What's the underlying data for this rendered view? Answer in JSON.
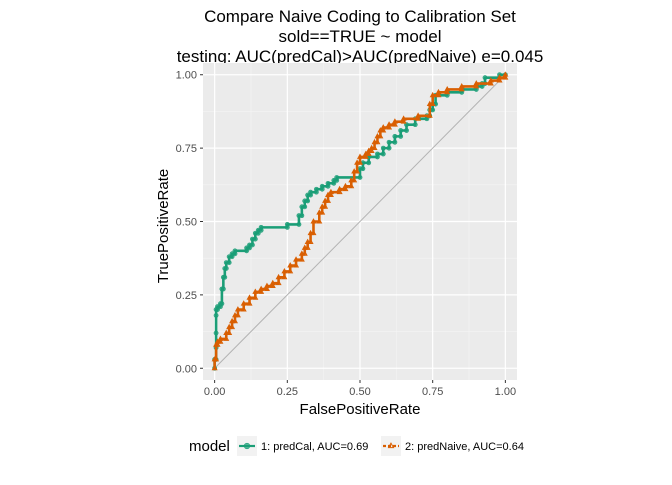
{
  "chart_data": {
    "type": "line",
    "title_lines": [
      "Compare Naive Coding to Calibration Set",
      "sold==TRUE ~ model",
      "testing: AUC(predCal)>AUC(predNaive) e=0.045"
    ],
    "xlabel": "FalsePositiveRate",
    "ylabel": "TruePositiveRate",
    "xlim": [
      -0.04,
      1.04
    ],
    "ylim": [
      -0.04,
      1.04
    ],
    "xticks": [
      "0.00",
      "0.25",
      "0.50",
      "0.75",
      "1.00"
    ],
    "yticks": [
      "0.00",
      "0.25",
      "0.50",
      "0.75",
      "1.00"
    ],
    "grid": true,
    "reference_line": [
      [
        0,
        0
      ],
      [
        1,
        1
      ]
    ],
    "legend": {
      "title": "model",
      "position": "bottom"
    },
    "series": [
      {
        "name": "1: predCal, AUC=0.69",
        "color": "#1b9e77",
        "marker": "circle",
        "points": [
          [
            0,
            0
          ],
          [
            0,
            0.03
          ],
          [
            0.005,
            0.03
          ],
          [
            0.005,
            0.07
          ],
          [
            0.005,
            0.12
          ],
          [
            0.005,
            0.18
          ],
          [
            0.005,
            0.2
          ],
          [
            0.01,
            0.2
          ],
          [
            0.01,
            0.21
          ],
          [
            0.02,
            0.21
          ],
          [
            0.02,
            0.22
          ],
          [
            0.025,
            0.22
          ],
          [
            0.025,
            0.27
          ],
          [
            0.03,
            0.27
          ],
          [
            0.03,
            0.31
          ],
          [
            0.035,
            0.31
          ],
          [
            0.035,
            0.34
          ],
          [
            0.04,
            0.34
          ],
          [
            0.04,
            0.36
          ],
          [
            0.05,
            0.36
          ],
          [
            0.05,
            0.38
          ],
          [
            0.06,
            0.38
          ],
          [
            0.06,
            0.39
          ],
          [
            0.07,
            0.39
          ],
          [
            0.07,
            0.4
          ],
          [
            0.11,
            0.4
          ],
          [
            0.11,
            0.41
          ],
          [
            0.12,
            0.41
          ],
          [
            0.12,
            0.42
          ],
          [
            0.13,
            0.42
          ],
          [
            0.13,
            0.44
          ],
          [
            0.14,
            0.44
          ],
          [
            0.14,
            0.46
          ],
          [
            0.15,
            0.46
          ],
          [
            0.15,
            0.47
          ],
          [
            0.16,
            0.47
          ],
          [
            0.16,
            0.48
          ],
          [
            0.25,
            0.48
          ],
          [
            0.25,
            0.49
          ],
          [
            0.29,
            0.49
          ],
          [
            0.29,
            0.52
          ],
          [
            0.3,
            0.52
          ],
          [
            0.3,
            0.55
          ],
          [
            0.31,
            0.55
          ],
          [
            0.31,
            0.57
          ],
          [
            0.32,
            0.57
          ],
          [
            0.32,
            0.59
          ],
          [
            0.33,
            0.59
          ],
          [
            0.33,
            0.6
          ],
          [
            0.35,
            0.6
          ],
          [
            0.35,
            0.61
          ],
          [
            0.37,
            0.61
          ],
          [
            0.37,
            0.62
          ],
          [
            0.39,
            0.62
          ],
          [
            0.39,
            0.63
          ],
          [
            0.41,
            0.63
          ],
          [
            0.41,
            0.64
          ],
          [
            0.42,
            0.64
          ],
          [
            0.42,
            0.65
          ],
          [
            0.5,
            0.65
          ],
          [
            0.5,
            0.68
          ],
          [
            0.51,
            0.68
          ],
          [
            0.51,
            0.7
          ],
          [
            0.53,
            0.7
          ],
          [
            0.53,
            0.72
          ],
          [
            0.56,
            0.72
          ],
          [
            0.56,
            0.73
          ],
          [
            0.58,
            0.73
          ],
          [
            0.58,
            0.75
          ],
          [
            0.6,
            0.75
          ],
          [
            0.6,
            0.77
          ],
          [
            0.62,
            0.77
          ],
          [
            0.62,
            0.79
          ],
          [
            0.64,
            0.79
          ],
          [
            0.64,
            0.81
          ],
          [
            0.66,
            0.81
          ],
          [
            0.66,
            0.83
          ],
          [
            0.69,
            0.83
          ],
          [
            0.69,
            0.85
          ],
          [
            0.73,
            0.85
          ],
          [
            0.73,
            0.86
          ],
          [
            0.74,
            0.86
          ],
          [
            0.74,
            0.88
          ],
          [
            0.75,
            0.88
          ],
          [
            0.75,
            0.9
          ],
          [
            0.76,
            0.9
          ],
          [
            0.76,
            0.93
          ],
          [
            0.8,
            0.93
          ],
          [
            0.8,
            0.94
          ],
          [
            0.85,
            0.94
          ],
          [
            0.85,
            0.95
          ],
          [
            0.9,
            0.95
          ],
          [
            0.9,
            0.96
          ],
          [
            0.92,
            0.96
          ],
          [
            0.92,
            0.97
          ],
          [
            0.93,
            0.97
          ],
          [
            0.93,
            0.99
          ],
          [
            0.98,
            0.99
          ],
          [
            0.98,
            1.0
          ],
          [
            1.0,
            1.0
          ]
        ]
      },
      {
        "name": "2: predNaive, AUC=0.64",
        "color": "#d95f02",
        "marker": "triangle",
        "points": [
          [
            0,
            0
          ],
          [
            0,
            0.03
          ],
          [
            0.005,
            0.03
          ],
          [
            0.005,
            0.08
          ],
          [
            0.01,
            0.08
          ],
          [
            0.01,
            0.09
          ],
          [
            0.02,
            0.09
          ],
          [
            0.02,
            0.1
          ],
          [
            0.04,
            0.1
          ],
          [
            0.04,
            0.12
          ],
          [
            0.05,
            0.12
          ],
          [
            0.05,
            0.14
          ],
          [
            0.06,
            0.14
          ],
          [
            0.06,
            0.16
          ],
          [
            0.07,
            0.16
          ],
          [
            0.07,
            0.18
          ],
          [
            0.08,
            0.18
          ],
          [
            0.08,
            0.2
          ],
          [
            0.1,
            0.2
          ],
          [
            0.1,
            0.22
          ],
          [
            0.12,
            0.22
          ],
          [
            0.12,
            0.24
          ],
          [
            0.14,
            0.24
          ],
          [
            0.14,
            0.26
          ],
          [
            0.16,
            0.26
          ],
          [
            0.16,
            0.27
          ],
          [
            0.18,
            0.27
          ],
          [
            0.18,
            0.28
          ],
          [
            0.2,
            0.28
          ],
          [
            0.2,
            0.29
          ],
          [
            0.22,
            0.29
          ],
          [
            0.22,
            0.31
          ],
          [
            0.24,
            0.31
          ],
          [
            0.24,
            0.33
          ],
          [
            0.26,
            0.33
          ],
          [
            0.26,
            0.35
          ],
          [
            0.28,
            0.35
          ],
          [
            0.28,
            0.37
          ],
          [
            0.3,
            0.37
          ],
          [
            0.3,
            0.39
          ],
          [
            0.31,
            0.39
          ],
          [
            0.31,
            0.41
          ],
          [
            0.32,
            0.41
          ],
          [
            0.32,
            0.43
          ],
          [
            0.33,
            0.43
          ],
          [
            0.33,
            0.46
          ],
          [
            0.34,
            0.46
          ],
          [
            0.34,
            0.5
          ],
          [
            0.36,
            0.5
          ],
          [
            0.36,
            0.53
          ],
          [
            0.37,
            0.53
          ],
          [
            0.37,
            0.55
          ],
          [
            0.38,
            0.55
          ],
          [
            0.38,
            0.57
          ],
          [
            0.39,
            0.57
          ],
          [
            0.39,
            0.59
          ],
          [
            0.4,
            0.59
          ],
          [
            0.4,
            0.6
          ],
          [
            0.43,
            0.6
          ],
          [
            0.43,
            0.61
          ],
          [
            0.45,
            0.61
          ],
          [
            0.45,
            0.62
          ],
          [
            0.47,
            0.62
          ],
          [
            0.47,
            0.64
          ],
          [
            0.48,
            0.64
          ],
          [
            0.48,
            0.67
          ],
          [
            0.49,
            0.67
          ],
          [
            0.49,
            0.7
          ],
          [
            0.5,
            0.7
          ],
          [
            0.5,
            0.72
          ],
          [
            0.52,
            0.72
          ],
          [
            0.52,
            0.73
          ],
          [
            0.53,
            0.73
          ],
          [
            0.53,
            0.74
          ],
          [
            0.54,
            0.74
          ],
          [
            0.54,
            0.75
          ],
          [
            0.55,
            0.75
          ],
          [
            0.55,
            0.77
          ],
          [
            0.56,
            0.77
          ],
          [
            0.56,
            0.79
          ],
          [
            0.57,
            0.79
          ],
          [
            0.57,
            0.81
          ],
          [
            0.58,
            0.81
          ],
          [
            0.58,
            0.82
          ],
          [
            0.6,
            0.82
          ],
          [
            0.6,
            0.83
          ],
          [
            0.62,
            0.83
          ],
          [
            0.62,
            0.84
          ],
          [
            0.65,
            0.84
          ],
          [
            0.65,
            0.85
          ],
          [
            0.7,
            0.85
          ],
          [
            0.7,
            0.86
          ],
          [
            0.74,
            0.86
          ],
          [
            0.74,
            0.9
          ],
          [
            0.75,
            0.9
          ],
          [
            0.75,
            0.93
          ],
          [
            0.77,
            0.93
          ],
          [
            0.77,
            0.94
          ],
          [
            0.8,
            0.94
          ],
          [
            0.8,
            0.95
          ],
          [
            0.85,
            0.95
          ],
          [
            0.85,
            0.96
          ],
          [
            0.9,
            0.96
          ],
          [
            0.9,
            0.97
          ],
          [
            0.95,
            0.97
          ],
          [
            0.95,
            0.98
          ],
          [
            0.98,
            0.98
          ],
          [
            0.98,
            0.99
          ],
          [
            1.0,
            0.99
          ],
          [
            1.0,
            1.0
          ]
        ]
      }
    ]
  }
}
